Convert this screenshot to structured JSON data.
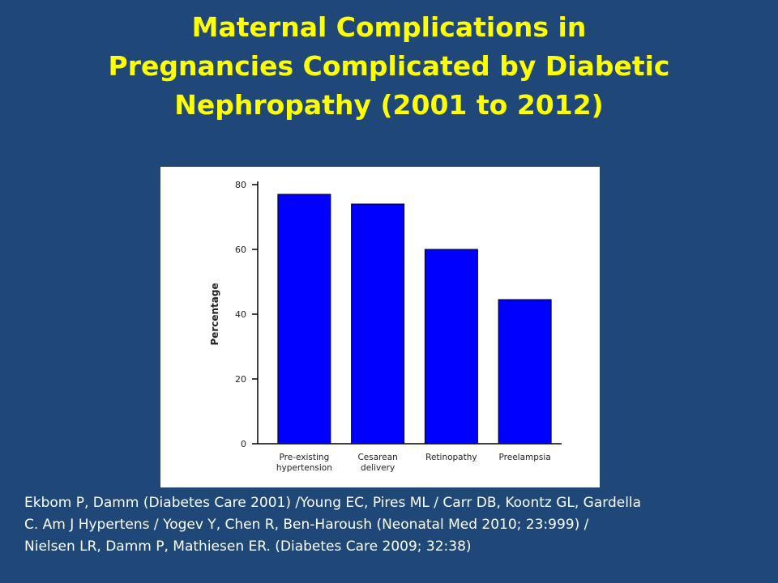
{
  "slide": {
    "title_lines": [
      "Maternal Complications in",
      "Pregnancies Complicated by Diabetic",
      "Nephropathy (2001 to 2012)"
    ],
    "citation_lines": [
      "Ekbom P, Damm (Diabetes Care 2001) /Young EC, Pires ML / Carr DB, Koontz GL, Gardella",
      "C. Am J Hypertens  /  Yogev Y, Chen R, Ben-Haroush (Neonatal Med 2010; 23:999)  /",
      "Nielsen LR, Damm P, Mathiesen ER. (Diabetes Care 2009; 32:38)"
    ]
  },
  "chart_data": {
    "type": "bar",
    "categories": [
      [
        "Pre-existing",
        "hypertension"
      ],
      [
        "Cesarean",
        "delivery"
      ],
      [
        "Retinopathy"
      ],
      [
        "Preelampsia"
      ]
    ],
    "values": [
      77,
      74,
      60,
      44.5
    ],
    "ylabel": "Percentage",
    "ylim": [
      0,
      80
    ],
    "yticks": [
      0,
      20,
      40,
      60,
      80
    ],
    "grid": false,
    "bar_color": "#0000ff"
  }
}
